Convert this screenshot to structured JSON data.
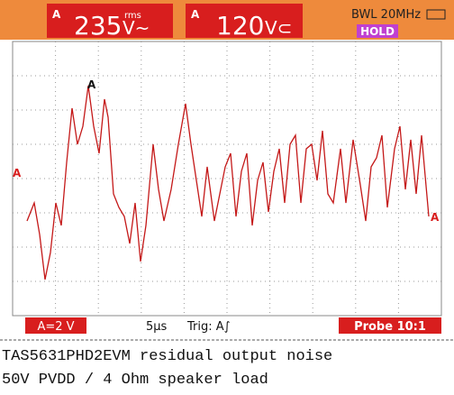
{
  "header": {
    "ch1_label": "A",
    "ch1_value": "235",
    "ch1_unit_top": "rms",
    "ch1_unit": "V~",
    "ch2_label": "A",
    "ch2_value": "120",
    "ch2_unit": "V⊂",
    "bandwidth": "BWL 20MHz",
    "status": "HOLD"
  },
  "markers": {
    "trigger": "A",
    "left": "A",
    "right": "A"
  },
  "footer": {
    "scale": "A=2 V",
    "timebase": "5µs",
    "trigger": "Trig: A∫",
    "probe": "Probe 10:1"
  },
  "caption": [
    "TAS5631PHD2EVM residual output noise",
    "50V PVDD / 4 Ohm speaker load"
  ]
}
